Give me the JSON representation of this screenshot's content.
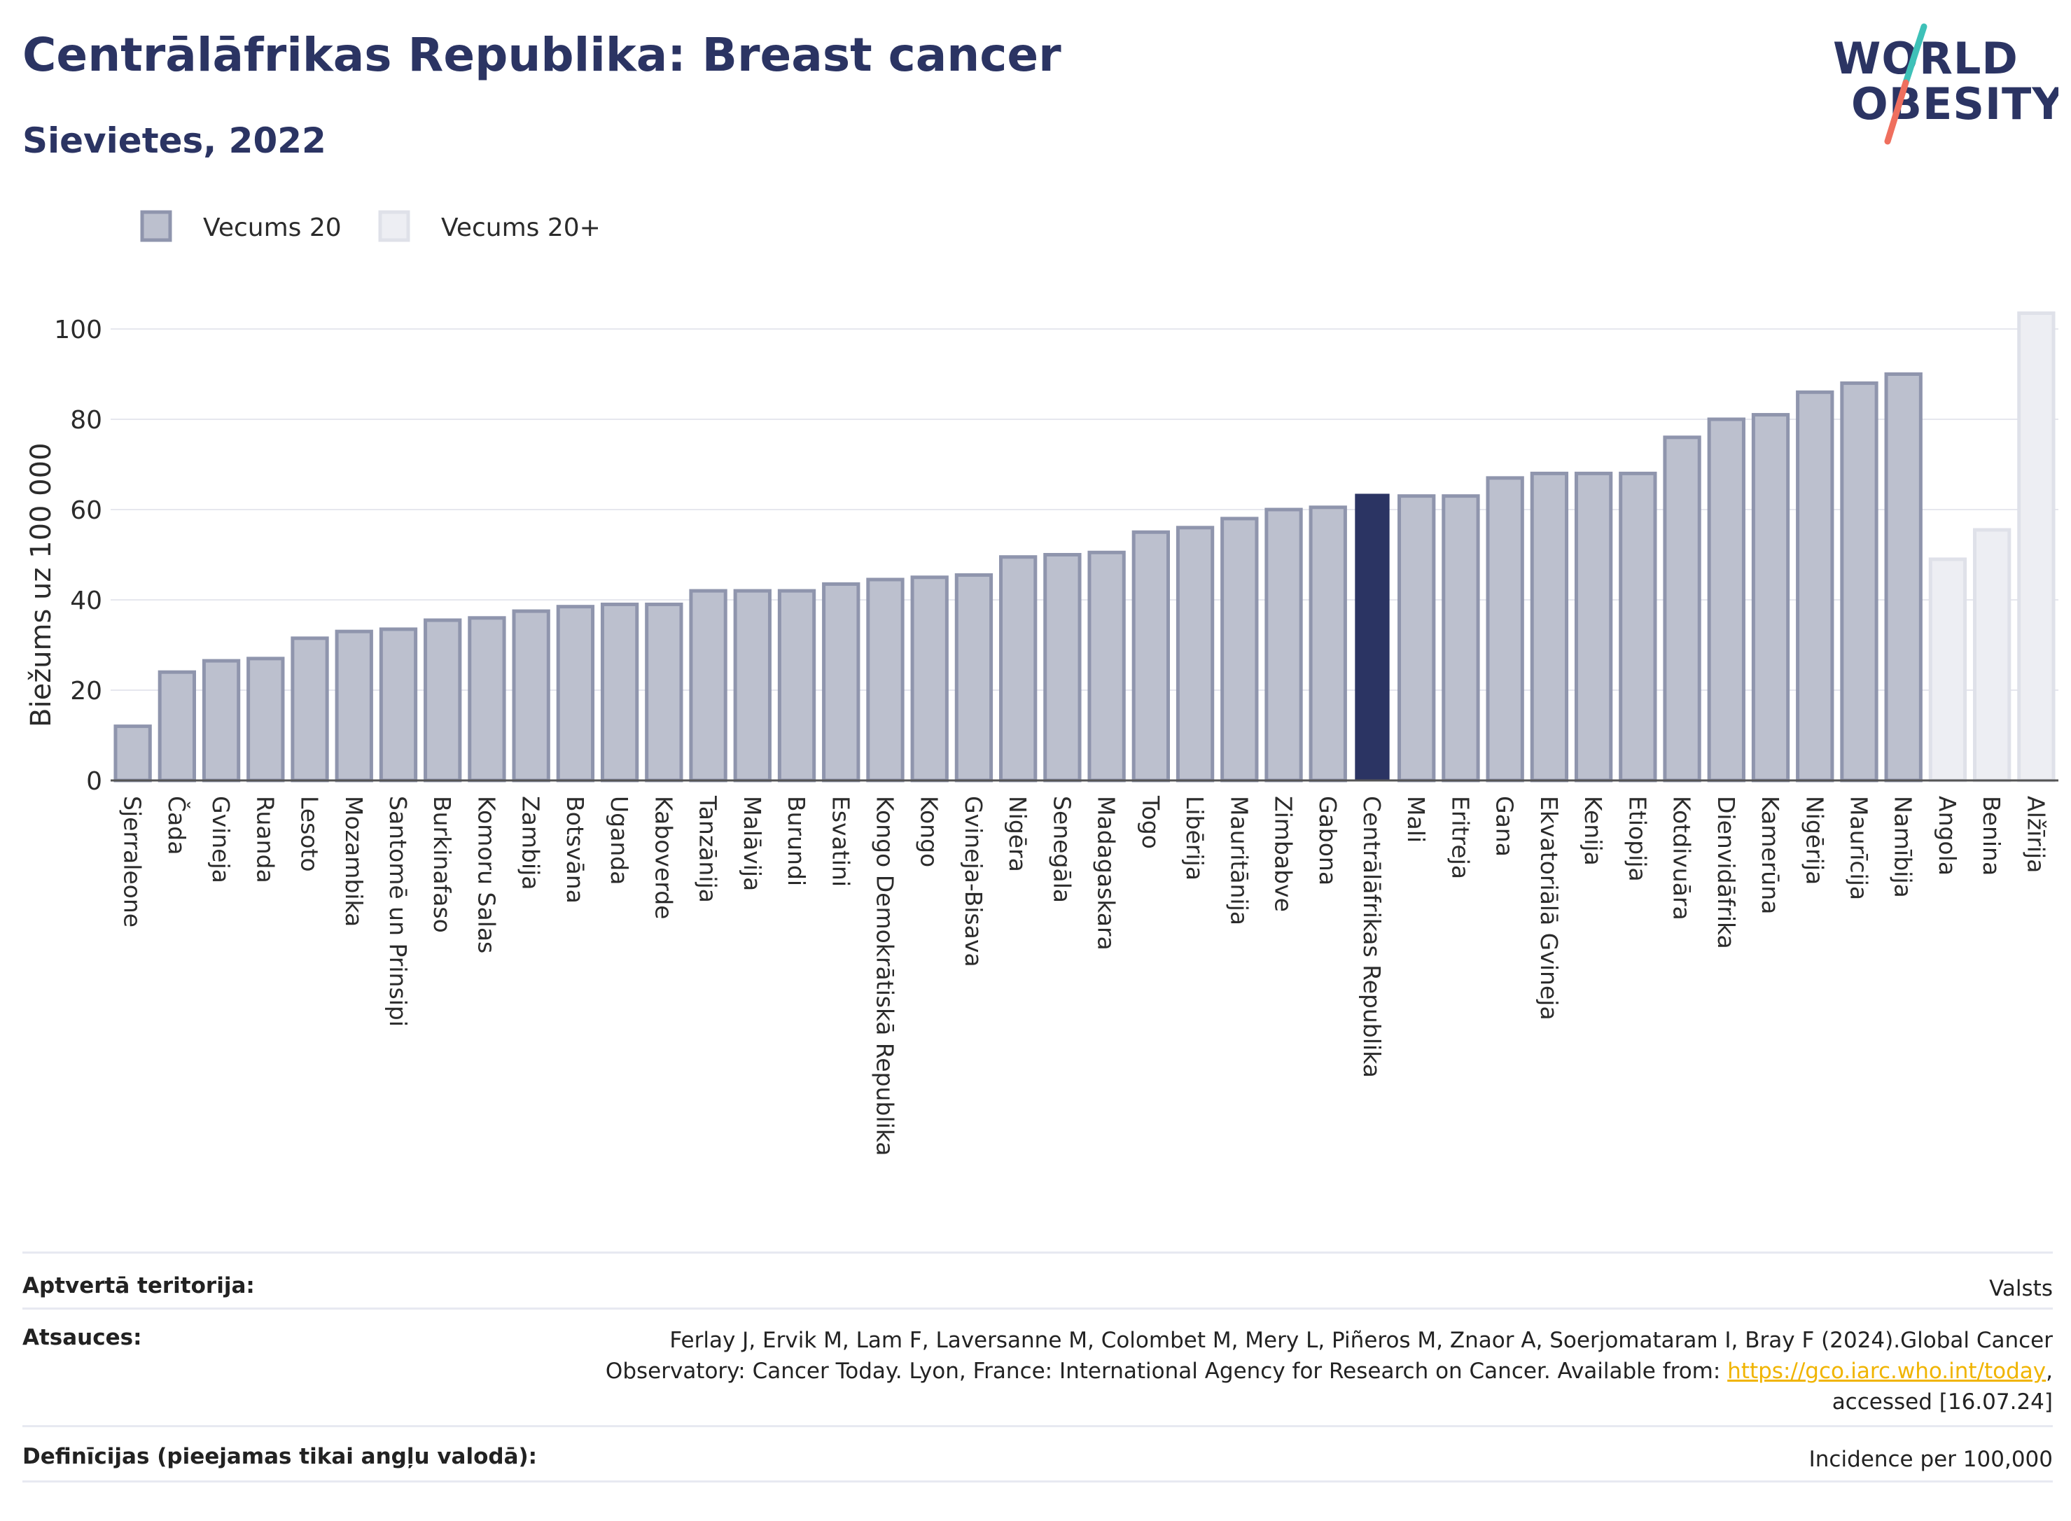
{
  "header": {
    "title": "Centrālāfrikas Republika: Breast cancer",
    "subtitle": "Sievietes, 2022"
  },
  "logo": {
    "line1": "WORLD",
    "line2": "OBESITY"
  },
  "colors": {
    "dark_navy": "#2b3463",
    "bar_fill": "#bcc0ce",
    "bar_stroke": "#8f95ad",
    "light_fill": "#edeef3",
    "light_stroke": "#dfe1e9",
    "highlight": "#2b3463",
    "logo_teal": "#3ec1b8",
    "logo_coral": "#ef6f5e",
    "link": "#f0b400"
  },
  "chart_data": {
    "type": "bar",
    "ylabel": "Biežums uz 100 000",
    "ylim": [
      0,
      110
    ],
    "yticks": [
      0,
      20,
      40,
      60,
      80,
      100
    ],
    "grid": true,
    "legend_position": "top-left",
    "legend": [
      {
        "label": "Vecums 20",
        "group": "a"
      },
      {
        "label": "Vecums 20+",
        "group": "b"
      }
    ],
    "highlight": "Centrālāfrikas Republika",
    "categories": [
      "Sjerraleone",
      "Čada",
      "Gvineja",
      "Ruanda",
      "Lesoto",
      "Mozambika",
      "Santomē un Prinsipi",
      "Burkinafaso",
      "Komoru Salas",
      "Zambija",
      "Botsvāna",
      "Uganda",
      "Kaboverde",
      "Tanzānija",
      "Malāvija",
      "Burundi",
      "Esvatini",
      "Kongo Demokrātiskā Republika",
      "Kongo",
      "Gvineja-Bisava",
      "Nigēra",
      "Senegāla",
      "Madagaskara",
      "Togo",
      "Libērija",
      "Mauritānija",
      "Zimbabve",
      "Gabona",
      "Centrālāfrikas Republika",
      "Mali",
      "Eritreja",
      "Gana",
      "Ekvatoriālā Gvineja",
      "Kenija",
      "Etiopija",
      "Kotdivuāra",
      "Dienvidāfrika",
      "Kamerūna",
      "Nigērija",
      "Maurīcija",
      "Namībija",
      "Angola",
      "Benina",
      "Alžīrija"
    ],
    "values": [
      12,
      24,
      26.5,
      27,
      31.5,
      33,
      33.5,
      35.5,
      36,
      37.5,
      38.5,
      39,
      39,
      42,
      42,
      42,
      43.5,
      44.5,
      45,
      45.5,
      49.5,
      50,
      50.5,
      55,
      56,
      58,
      60,
      60.5,
      63.5,
      63,
      63,
      67,
      68,
      68,
      68,
      76,
      80,
      81,
      86,
      88,
      90,
      49,
      55.5,
      103.5
    ],
    "groups": [
      "a",
      "a",
      "a",
      "a",
      "a",
      "a",
      "a",
      "a",
      "a",
      "a",
      "a",
      "a",
      "a",
      "a",
      "a",
      "a",
      "a",
      "a",
      "a",
      "a",
      "a",
      "a",
      "a",
      "a",
      "a",
      "a",
      "a",
      "a",
      "a",
      "a",
      "a",
      "a",
      "a",
      "a",
      "a",
      "a",
      "a",
      "a",
      "a",
      "a",
      "a",
      "b",
      "b",
      "b"
    ]
  },
  "footer": {
    "rows": [
      {
        "label": "Aptvertā teritorija:",
        "value": "Valsts"
      },
      {
        "label": "Atsauces:",
        "value_line1": "Ferlay J, Ervik M, Lam F, Laversanne M, Colombet M, Mery L, Piñeros M, Znaor A, Soerjomataram I, Bray F (2024).Global Cancer",
        "value_line2_pre": "Observatory: Cancer Today. Lyon, France: International Agency for Research on Cancer. Available from: ",
        "value_link": "https://gco.iarc.who.int/today",
        "value_line2_post": ",",
        "value_line3": "accessed [16.07.24]"
      },
      {
        "label": "Definīcijas (pieejamas tikai angļu valodā):",
        "value": "Incidence per 100,000"
      }
    ]
  }
}
